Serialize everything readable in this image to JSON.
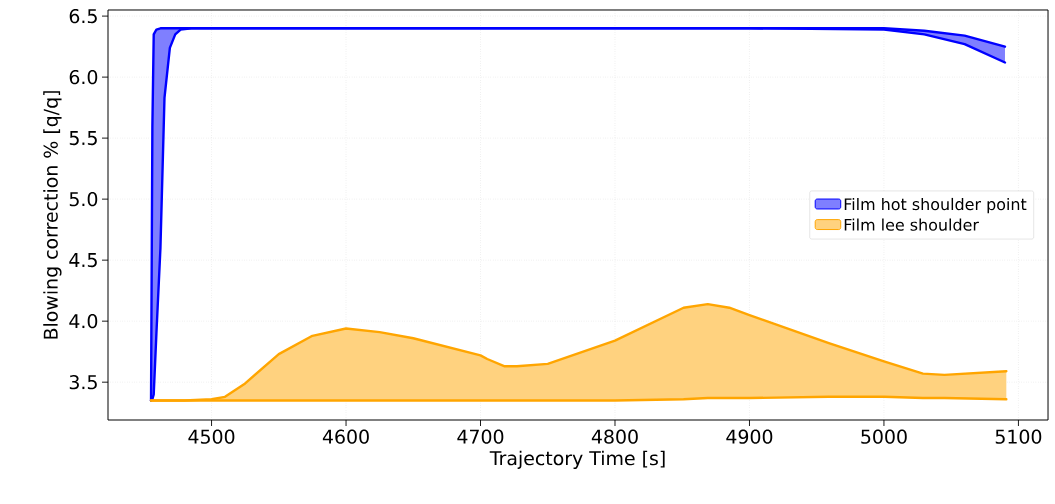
{
  "chart_data": {
    "type": "line",
    "xlabel": "Trajectory Time [s]",
    "ylabel": "Blowing correction % [q/q]",
    "xlim": [
      4423,
      5122
    ],
    "ylim": [
      3.19,
      6.55
    ],
    "xticks": [
      4500,
      4600,
      4700,
      4800,
      4900,
      5000,
      5100
    ],
    "yticks": [
      3.5,
      {
        "value": 4.0,
        "label": "4.0"
      },
      4.5,
      {
        "value": 5.0,
        "label": "5.0"
      },
      5.5,
      {
        "value": 6.0,
        "label": "6.0"
      },
      6.5
    ],
    "grid": true,
    "legend": "right",
    "series": [
      {
        "name": "Film hot shoulder point",
        "color": "#0000ff",
        "x": [
          4455,
          4456,
          4457,
          4459,
          4462,
          4465,
          4469,
          4473,
          4477,
          4485,
          4500,
          4700,
          4900,
          5000,
          5030,
          5060,
          5090
        ],
        "values": [
          3.35,
          5.6,
          6.35,
          6.39,
          6.4,
          6.4,
          6.4,
          6.4,
          6.4,
          6.4,
          6.4,
          6.4,
          6.4,
          6.4,
          6.38,
          6.34,
          6.25
        ],
        "upper": [
          3.35,
          5.6,
          6.35,
          6.39,
          6.4,
          6.4,
          6.4,
          6.4,
          6.4,
          6.4,
          6.4,
          6.4,
          6.4,
          6.4,
          6.38,
          6.34,
          6.25
        ],
        "lower": [
          3.35,
          3.36,
          3.4,
          3.9,
          4.6,
          5.83,
          6.24,
          6.35,
          6.39,
          6.4,
          6.4,
          6.4,
          6.4,
          6.39,
          6.35,
          6.27,
          6.12
        ]
      },
      {
        "color": "#0000ff",
        "x": [
          4455,
          4456,
          4457,
          4459,
          4462,
          4465,
          4469,
          4473,
          4477,
          4485,
          4500,
          4700,
          4900,
          5000,
          5030,
          5060,
          5090
        ],
        "values": [
          3.35,
          3.36,
          3.4,
          3.9,
          4.6,
          5.83,
          6.24,
          6.35,
          6.39,
          6.4,
          6.4,
          6.4,
          6.4,
          6.39,
          6.35,
          6.27,
          6.12
        ]
      },
      {
        "name": "Film lee shoulder",
        "color": "#ffa500",
        "x": [
          4455,
          4480,
          4500,
          4510,
          4525,
          4550,
          4575,
          4600,
          4625,
          4650,
          4675,
          4700,
          4705,
          4718,
          4727,
          4750,
          4800,
          4851,
          4869,
          4885,
          4900,
          4959,
          5000,
          5029,
          5045,
          5091
        ],
        "values": [
          3.35,
          3.35,
          3.36,
          3.38,
          3.49,
          3.73,
          3.88,
          3.94,
          3.91,
          3.86,
          3.79,
          3.72,
          3.69,
          3.63,
          3.63,
          3.65,
          3.84,
          4.11,
          4.14,
          4.11,
          4.05,
          3.82,
          3.67,
          3.57,
          3.56,
          3.59
        ],
        "upper": [
          3.35,
          3.35,
          3.36,
          3.38,
          3.49,
          3.73,
          3.88,
          3.94,
          3.91,
          3.86,
          3.79,
          3.72,
          3.69,
          3.63,
          3.63,
          3.65,
          3.84,
          4.11,
          4.14,
          4.11,
          4.05,
          3.82,
          3.67,
          3.57,
          3.56,
          3.59
        ],
        "lower": [
          3.35,
          3.35,
          3.35,
          3.35,
          3.35,
          3.35,
          3.35,
          3.35,
          3.35,
          3.35,
          3.35,
          3.35,
          3.35,
          3.35,
          3.35,
          3.35,
          3.35,
          3.36,
          3.37,
          3.37,
          3.37,
          3.38,
          3.38,
          3.37,
          3.37,
          3.36
        ]
      },
      {
        "color": "#ffa500",
        "x": [
          4455,
          4480,
          4500,
          4510,
          4525,
          4550,
          4575,
          4600,
          4625,
          4650,
          4675,
          4700,
          4705,
          4718,
          4727,
          4750,
          4800,
          4851,
          4869,
          4885,
          4900,
          4959,
          5000,
          5029,
          5045,
          5091
        ],
        "values": [
          3.35,
          3.35,
          3.35,
          3.35,
          3.35,
          3.35,
          3.35,
          3.35,
          3.35,
          3.35,
          3.35,
          3.35,
          3.35,
          3.35,
          3.35,
          3.35,
          3.35,
          3.36,
          3.37,
          3.37,
          3.37,
          3.38,
          3.38,
          3.37,
          3.37,
          3.36
        ]
      }
    ]
  }
}
